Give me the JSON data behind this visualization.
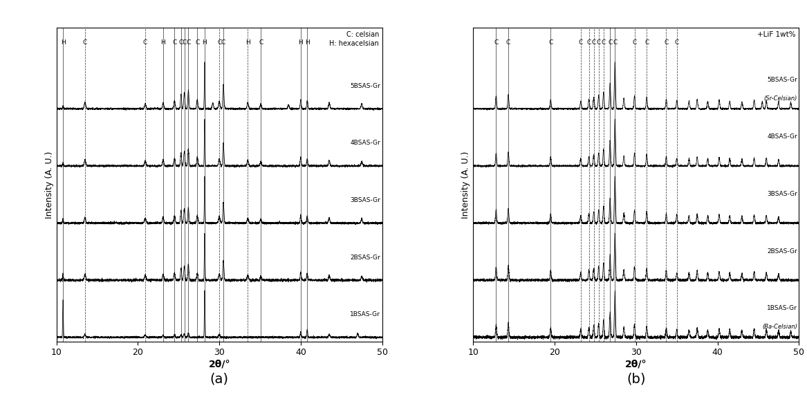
{
  "xlim": [
    10,
    50
  ],
  "xlabel_a": "2θ/°",
  "xlabel_b": "2θ/°",
  "ylabel": "Intensity (A. U.)",
  "samples_a": [
    "1BSAS-Gr",
    "2BSAS-Gr",
    "3BSAS-Gr",
    "4BSAS-Gr",
    "5BSAS-Gr"
  ],
  "label_a": "(a)",
  "label_b": "(b)",
  "legend_a_line1": "C: celsian",
  "legend_a_line2": "H: hexacelsian",
  "annotation_b_top": "+LiF 1wt%",
  "sample_b_top_sub": "(Sr-Celsian)",
  "sample_b_bot_sub": "(Ba-Celsian)",
  "panel_a_vlines": [
    10.8,
    13.5,
    20.9,
    23.1,
    24.5,
    25.3,
    25.7,
    26.2,
    27.3,
    28.2,
    30.0,
    30.5,
    33.5,
    35.1,
    40.0,
    40.8
  ],
  "panel_a_vlines_labels": [
    "H",
    "C",
    "C",
    "H",
    "C",
    "C",
    "C",
    "C",
    "C",
    "H",
    "C",
    "C",
    "H",
    "C",
    "H",
    "H"
  ],
  "panel_a_vlines_solid": [
    10.8,
    23.1,
    24.5,
    25.3,
    25.7,
    26.2,
    27.3,
    28.2,
    30.5,
    35.1,
    40.0,
    40.8
  ],
  "panel_a_vlines_dashed": [
    13.5,
    20.9,
    30.0,
    33.5
  ],
  "panel_b_vlines": [
    12.8,
    14.3,
    19.5,
    23.2,
    24.2,
    24.8,
    25.4,
    26.0,
    26.8,
    27.4,
    29.8,
    31.3,
    33.7,
    35.0
  ],
  "panel_b_vlines_labels": [
    "C",
    "C",
    "C",
    "C",
    "C",
    "C",
    "C",
    "C",
    "C",
    "C",
    "C",
    "C",
    "C",
    "C"
  ],
  "panel_b_vlines_solid": [
    12.8,
    14.3,
    19.5,
    26.8,
    27.4
  ],
  "noise_seed": 42
}
